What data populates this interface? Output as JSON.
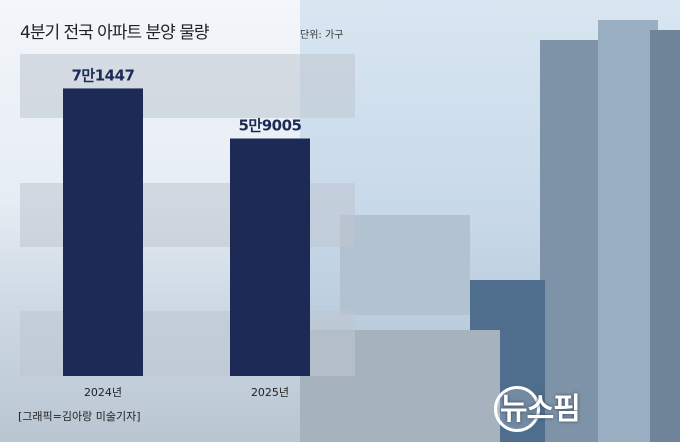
{
  "header": {
    "title": "4분기 전국 아파트 분양 물량",
    "unit": "단위: 가구"
  },
  "footer": {
    "credit": "[그래픽=김아랑 미술기자]",
    "logo": "뉴스핌"
  },
  "colors": {
    "bar": "#1c2a55",
    "label": "#1c2a55"
  },
  "chart_data": {
    "type": "bar",
    "title": "4분기 전국 아파트 분양 물량",
    "unit": "가구",
    "categories": [
      "2024년",
      "2025년"
    ],
    "values": [
      71447,
      59005
    ],
    "value_labels": [
      "7만1447",
      "5만9005"
    ],
    "ylim": [
      0,
      80000
    ],
    "grid": "alternating horizontal bands",
    "legend": "none"
  }
}
